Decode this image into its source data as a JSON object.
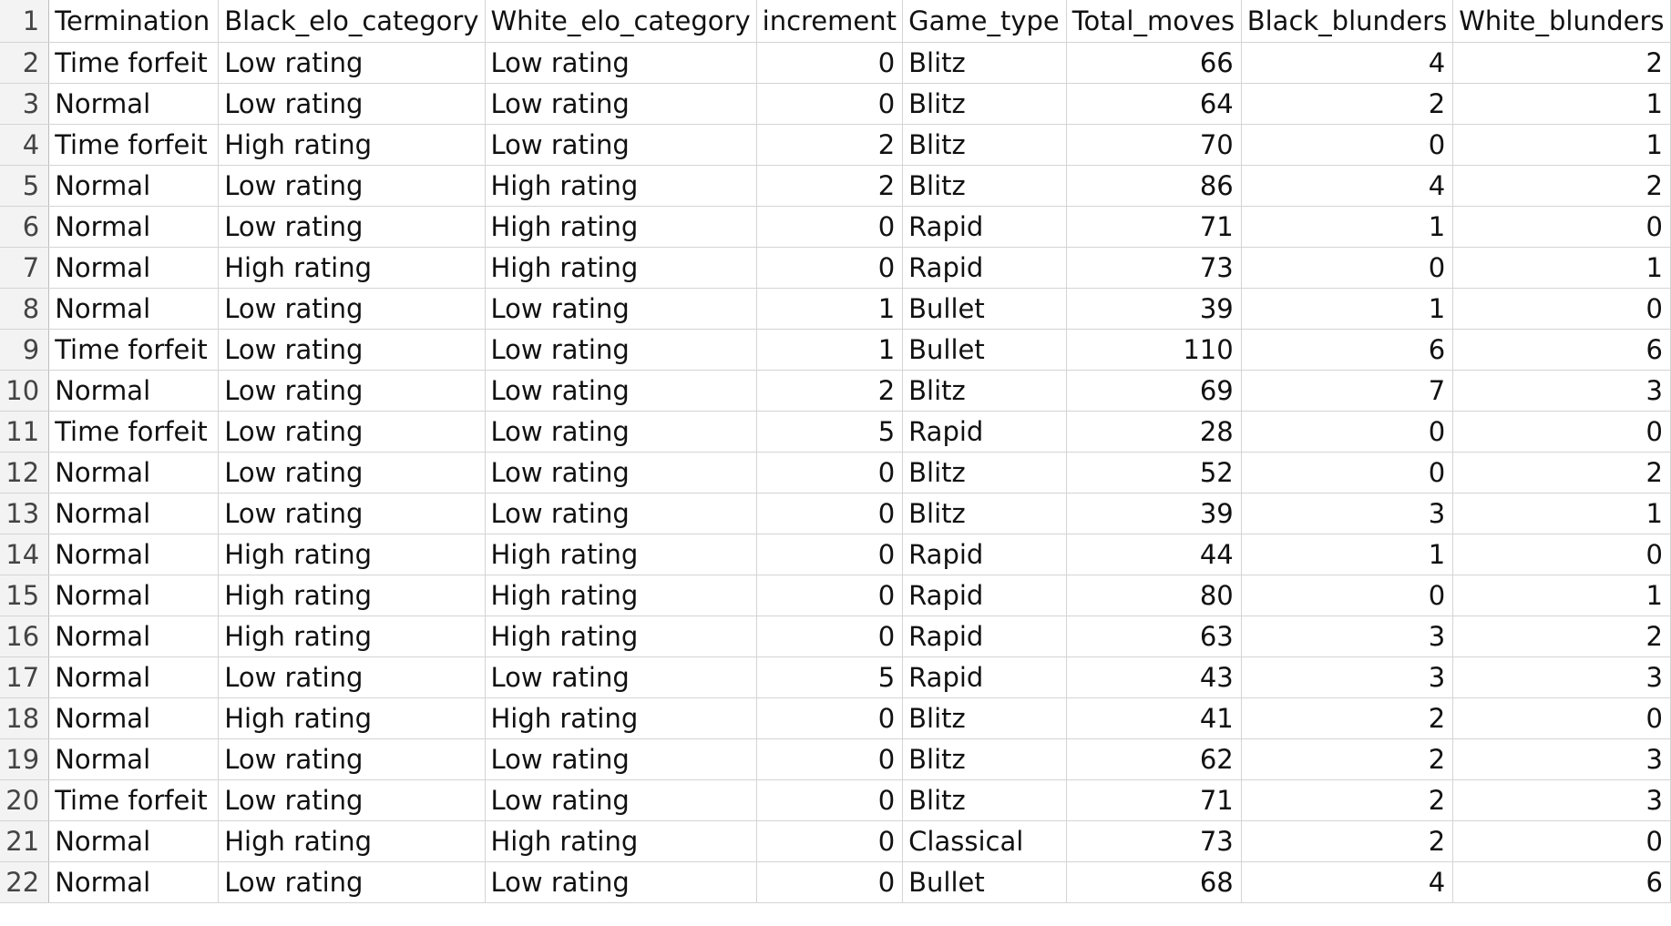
{
  "sheet": {
    "header": [
      "Termination",
      "Black_elo_category",
      "White_elo_category",
      "increment",
      "Game_type",
      "Total_moves",
      "Black_blunders",
      "White_blunders"
    ],
    "rows": [
      {
        "n": "2",
        "c": [
          "Time forfeit",
          "Low rating",
          "Low rating",
          "0",
          "Blitz",
          "66",
          "4",
          "2"
        ]
      },
      {
        "n": "3",
        "c": [
          "Normal",
          "Low rating",
          "Low rating",
          "0",
          "Blitz",
          "64",
          "2",
          "1"
        ]
      },
      {
        "n": "4",
        "c": [
          "Time forfeit",
          "High rating",
          "Low rating",
          "2",
          "Blitz",
          "70",
          "0",
          "1"
        ]
      },
      {
        "n": "5",
        "c": [
          "Normal",
          "Low rating",
          "High rating",
          "2",
          "Blitz",
          "86",
          "4",
          "2"
        ]
      },
      {
        "n": "6",
        "c": [
          "Normal",
          "Low rating",
          "High rating",
          "0",
          "Rapid",
          "71",
          "1",
          "0"
        ]
      },
      {
        "n": "7",
        "c": [
          "Normal",
          "High rating",
          "High rating",
          "0",
          "Rapid",
          "73",
          "0",
          "1"
        ]
      },
      {
        "n": "8",
        "c": [
          "Normal",
          "Low rating",
          "Low rating",
          "1",
          "Bullet",
          "39",
          "1",
          "0"
        ]
      },
      {
        "n": "9",
        "c": [
          "Time forfeit",
          "Low rating",
          "Low rating",
          "1",
          "Bullet",
          "110",
          "6",
          "6"
        ]
      },
      {
        "n": "10",
        "c": [
          "Normal",
          "Low rating",
          "Low rating",
          "2",
          "Blitz",
          "69",
          "7",
          "3"
        ]
      },
      {
        "n": "11",
        "c": [
          "Time forfeit",
          "Low rating",
          "Low rating",
          "5",
          "Rapid",
          "28",
          "0",
          "0"
        ]
      },
      {
        "n": "12",
        "c": [
          "Normal",
          "Low rating",
          "Low rating",
          "0",
          "Blitz",
          "52",
          "0",
          "2"
        ]
      },
      {
        "n": "13",
        "c": [
          "Normal",
          "Low rating",
          "Low rating",
          "0",
          "Blitz",
          "39",
          "3",
          "1"
        ]
      },
      {
        "n": "14",
        "c": [
          "Normal",
          "High rating",
          "High rating",
          "0",
          "Rapid",
          "44",
          "1",
          "0"
        ]
      },
      {
        "n": "15",
        "c": [
          "Normal",
          "High rating",
          "High rating",
          "0",
          "Rapid",
          "80",
          "0",
          "1"
        ]
      },
      {
        "n": "16",
        "c": [
          "Normal",
          "High rating",
          "High rating",
          "0",
          "Rapid",
          "63",
          "3",
          "2"
        ]
      },
      {
        "n": "17",
        "c": [
          "Normal",
          "Low rating",
          "Low rating",
          "5",
          "Rapid",
          "43",
          "3",
          "3"
        ]
      },
      {
        "n": "18",
        "c": [
          "Normal",
          "High rating",
          "High rating",
          "0",
          "Blitz",
          "41",
          "2",
          "0"
        ]
      },
      {
        "n": "19",
        "c": [
          "Normal",
          "Low rating",
          "Low rating",
          "0",
          "Blitz",
          "62",
          "2",
          "3"
        ]
      },
      {
        "n": "20",
        "c": [
          "Time forfeit",
          "Low rating",
          "Low rating",
          "0",
          "Blitz",
          "71",
          "2",
          "3"
        ]
      },
      {
        "n": "21",
        "c": [
          "Normal",
          "High rating",
          "High rating",
          "0",
          "Classical",
          "73",
          "2",
          "0"
        ]
      },
      {
        "n": "22",
        "c": [
          "Normal",
          "Low rating",
          "Low rating",
          "0",
          "Bullet",
          "68",
          "4",
          "6"
        ]
      }
    ],
    "header_row_number": "1"
  }
}
